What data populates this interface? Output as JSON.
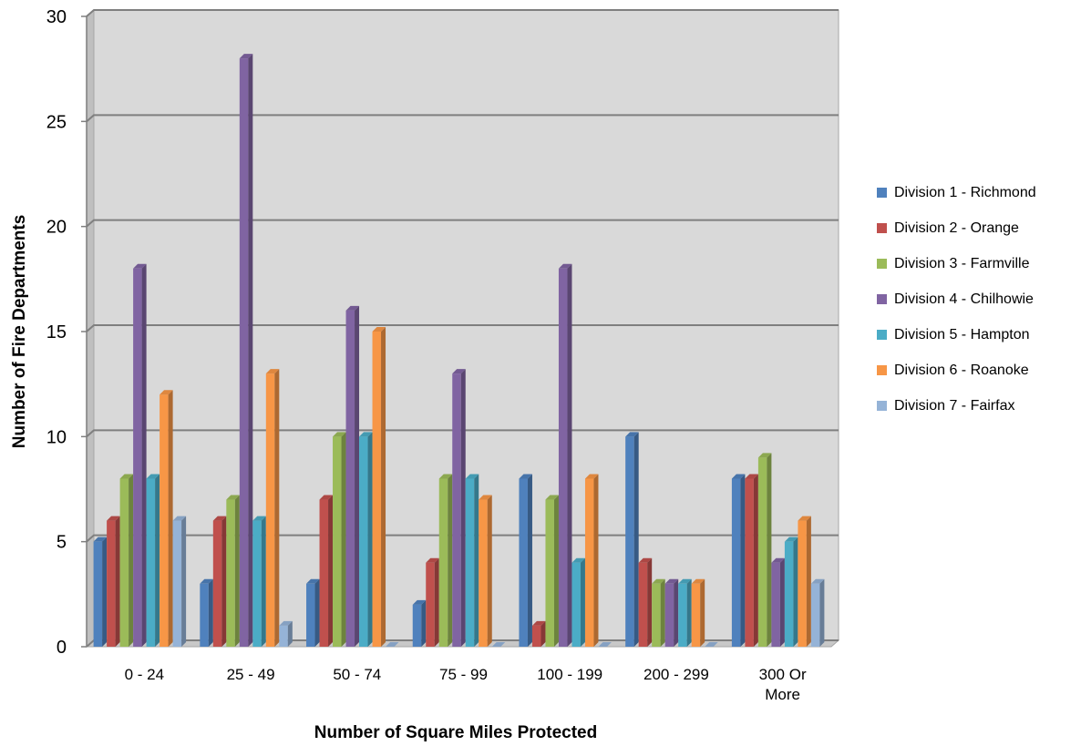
{
  "chart_data": {
    "type": "bar",
    "title": "",
    "xlabel": "Number of Square Miles Protected",
    "ylabel": "Number of Fire Departments",
    "ylim": [
      0,
      30
    ],
    "yticks": [
      0,
      5,
      10,
      15,
      20,
      25,
      30
    ],
    "grid": true,
    "legend_position": "right",
    "categories": [
      [
        "0 - 24"
      ],
      [
        "25 - 49"
      ],
      [
        "50 - 74"
      ],
      [
        "75 - 99"
      ],
      [
        "100 - 199"
      ],
      [
        "200 - 299"
      ],
      [
        "300 Or",
        "More"
      ]
    ],
    "series": [
      {
        "name": "Division 1 - Richmond",
        "color": "#4f81bd",
        "values": [
          5,
          3,
          3,
          2,
          8,
          10,
          8
        ]
      },
      {
        "name": "Division 2 - Orange",
        "color": "#c0504d",
        "values": [
          6,
          6,
          7,
          4,
          1,
          4,
          8
        ]
      },
      {
        "name": "Division 3 - Farmville",
        "color": "#9bbb59",
        "values": [
          8,
          7,
          10,
          8,
          7,
          3,
          9
        ]
      },
      {
        "name": "Division 4 - Chilhowie",
        "color": "#8064a2",
        "values": [
          18,
          28,
          16,
          13,
          18,
          3,
          4
        ]
      },
      {
        "name": "Division 5 - Hampton",
        "color": "#4bacc6",
        "values": [
          8,
          6,
          10,
          8,
          4,
          3,
          5
        ]
      },
      {
        "name": "Division 6 - Roanoke",
        "color": "#f79646",
        "values": [
          12,
          13,
          15,
          7,
          8,
          3,
          6
        ]
      },
      {
        "name": "Division 7 - Fairfax",
        "color": "#95b3d7",
        "values": [
          6,
          1,
          0,
          0,
          0,
          0,
          3
        ]
      }
    ],
    "background": "#d9d9d9"
  }
}
